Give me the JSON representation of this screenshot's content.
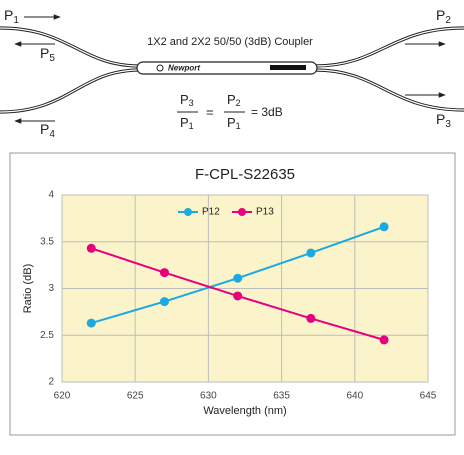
{
  "diagram": {
    "title": "1X2 and 2X2 50/50 (3dB) Coupler",
    "logo": "Newport",
    "ports": [
      {
        "base": "P",
        "sub": "1"
      },
      {
        "base": "P",
        "sub": "2"
      },
      {
        "base": "P",
        "sub": "3"
      },
      {
        "base": "P",
        "sub": "4"
      },
      {
        "base": "P",
        "sub": "5"
      }
    ],
    "equation": {
      "fraction_1": {
        "numerator": {
          "base": "P",
          "sub": "3"
        },
        "denominator": {
          "base": "P",
          "sub": "1"
        }
      },
      "equals": "=",
      "fraction_2": {
        "numerator": {
          "base": "P",
          "sub": "2"
        },
        "denominator": {
          "base": "P",
          "sub": "1"
        }
      },
      "result": "= 3dB"
    }
  },
  "chart_data": {
    "type": "line",
    "title": "F-CPL-S22635",
    "x_label": "Wavelength (nm)",
    "y_label": "Ratio (dB)",
    "x": [
      622,
      627,
      632,
      637,
      642
    ],
    "series": [
      {
        "name": "P12",
        "color": "#1ba9e1",
        "values": [
          2.63,
          2.86,
          3.11,
          3.38,
          3.66
        ]
      },
      {
        "name": "P13",
        "color": "#e6007e",
        "values": [
          3.43,
          3.17,
          2.92,
          2.68,
          2.45
        ]
      }
    ],
    "xlim": [
      620,
      645
    ],
    "xticks": [
      620,
      625,
      630,
      635,
      640,
      645
    ],
    "ylim": [
      2,
      4
    ],
    "yticks": [
      2,
      2.5,
      3,
      3.5,
      4
    ],
    "grid": true,
    "legend": "top",
    "plot_background": "#fbf4cb"
  }
}
